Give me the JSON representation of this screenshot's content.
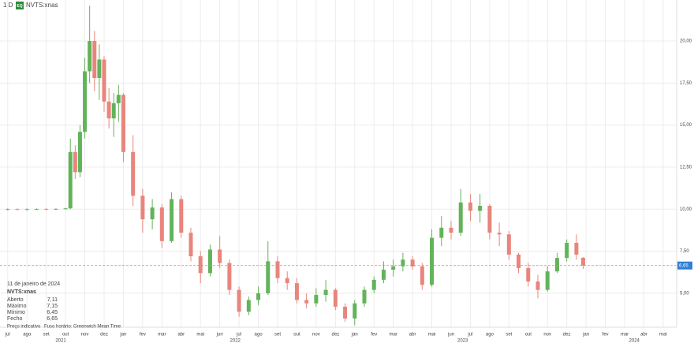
{
  "toolbar": {
    "interval": "1 D",
    "badge": "EQ",
    "symbol": "NVTS:xnas"
  },
  "chart_data": {
    "type": "candlestick",
    "x": [
      0,
      0.5,
      1,
      1.5,
      2,
      2.5,
      3,
      3.25,
      3.5,
      3.75,
      4,
      4.25,
      4.5,
      4.75,
      5,
      5.25,
      5.5,
      5.75,
      6,
      6.5,
      7,
      7.5,
      8,
      8.5,
      9,
      9.5,
      10,
      10.5,
      11,
      11.5,
      12,
      12.5,
      13,
      13.5,
      14,
      14.5,
      15,
      15.5,
      16,
      16.5,
      17,
      17.5,
      18,
      18.5,
      19,
      19.5,
      20,
      20.5,
      21,
      21.5,
      22,
      22.5,
      23,
      23.5,
      24,
      24.5,
      25,
      25.5,
      26,
      26.5,
      27,
      27.5,
      28,
      28.5,
      29,
      29.5,
      29.85
    ],
    "open": [
      10.0,
      10.0,
      9.98,
      10.0,
      10.01,
      10.0,
      10.02,
      10.05,
      13.4,
      12.2,
      14.6,
      18.2,
      20.0,
      17.8,
      18.9,
      16.4,
      15.4,
      16.3,
      16.8,
      13.4,
      10.8,
      9.4,
      10.1,
      8.1,
      10.6,
      8.6,
      7.2,
      6.2,
      7.6,
      6.8,
      5.2,
      3.9,
      4.6,
      5.0,
      6.9,
      5.9,
      5.6,
      4.6,
      4.4,
      4.9,
      5.2,
      4.2,
      3.5,
      4.4,
      5.2,
      5.8,
      6.4,
      6.6,
      7.0,
      6.6,
      5.5,
      8.3,
      8.9,
      8.6,
      10.4,
      9.9,
      10.2,
      8.6,
      8.5,
      7.3,
      6.5,
      5.7,
      5.2,
      6.3,
      7.1,
      8.0,
      7.11
    ],
    "high": [
      10.05,
      10.05,
      10.05,
      10.05,
      10.06,
      10.05,
      10.08,
      14.2,
      13.8,
      15.0,
      19.0,
      22.1,
      20.6,
      19.8,
      19.1,
      17.2,
      16.9,
      17.4,
      16.9,
      14.4,
      11.2,
      10.6,
      10.3,
      11.0,
      10.8,
      8.9,
      7.5,
      7.9,
      8.4,
      7.0,
      5.4,
      4.8,
      5.4,
      8.1,
      7.2,
      6.3,
      5.9,
      5.0,
      5.3,
      5.8,
      5.3,
      4.4,
      4.6,
      5.4,
      6.0,
      6.9,
      7.0,
      7.4,
      7.2,
      6.8,
      8.8,
      9.6,
      9.3,
      11.2,
      10.9,
      10.9,
      10.3,
      9.2,
      8.7,
      7.4,
      6.8,
      6.1,
      6.6,
      7.4,
      8.2,
      8.5,
      7.15
    ],
    "low": [
      9.95,
      9.95,
      9.95,
      9.96,
      9.97,
      9.97,
      9.98,
      10.0,
      11.8,
      11.9,
      14.2,
      17.5,
      17.0,
      16.5,
      15.8,
      14.8,
      14.3,
      15.2,
      12.8,
      10.2,
      8.6,
      8.8,
      7.7,
      8.0,
      8.3,
      6.9,
      5.6,
      6.0,
      6.5,
      4.9,
      3.6,
      3.7,
      4.3,
      4.9,
      5.6,
      5.2,
      4.4,
      4.1,
      4.2,
      4.5,
      4.0,
      3.3,
      3.1,
      4.2,
      5.0,
      5.6,
      6.0,
      6.3,
      6.4,
      5.2,
      5.4,
      7.8,
      8.2,
      8.4,
      9.3,
      9.2,
      8.2,
      7.8,
      7.0,
      6.2,
      5.4,
      4.7,
      5.1,
      6.2,
      6.9,
      7.0,
      6.45
    ],
    "close": [
      10.0,
      9.98,
      10.0,
      10.01,
      10.0,
      10.02,
      10.05,
      13.4,
      12.2,
      14.6,
      18.2,
      20.0,
      17.8,
      18.9,
      16.4,
      15.4,
      16.3,
      16.8,
      13.4,
      10.8,
      9.4,
      10.1,
      8.1,
      10.6,
      8.6,
      7.2,
      6.2,
      7.6,
      6.8,
      5.2,
      3.9,
      4.6,
      5.0,
      6.9,
      5.9,
      5.6,
      4.6,
      4.4,
      4.9,
      5.2,
      4.2,
      3.5,
      4.4,
      5.2,
      5.8,
      6.4,
      6.6,
      7.0,
      6.6,
      5.5,
      8.3,
      8.9,
      8.6,
      10.4,
      9.9,
      10.2,
      8.6,
      8.5,
      7.3,
      6.5,
      5.7,
      5.2,
      6.3,
      7.1,
      8.0,
      7.3,
      6.65
    ],
    "up_color": "#62b35a",
    "down_color": "#e8857c",
    "xlim": [
      -0.4,
      34.7
    ],
    "ylim": [
      2.98,
      22.44
    ],
    "grid": true,
    "yticks": [
      {
        "value": 5,
        "label": "5,00"
      },
      {
        "value": 7.5,
        "label": "7,50"
      },
      {
        "value": 10,
        "label": "10,00"
      },
      {
        "value": 12.5,
        "label": "12,50"
      },
      {
        "value": 15,
        "label": "15,00"
      },
      {
        "value": 17.5,
        "label": "17,50"
      },
      {
        "value": 20,
        "label": "20,00"
      }
    ],
    "xticks": [
      {
        "value": 0,
        "label": "jul"
      },
      {
        "value": 1,
        "label": "ago"
      },
      {
        "value": 2,
        "label": "set"
      },
      {
        "value": 3,
        "label": "out"
      },
      {
        "value": 4,
        "label": "nov"
      },
      {
        "value": 5,
        "label": "dez"
      },
      {
        "value": 6,
        "label": "jan"
      },
      {
        "value": 7,
        "label": "fev"
      },
      {
        "value": 8,
        "label": "mar"
      },
      {
        "value": 9,
        "label": "abr"
      },
      {
        "value": 10,
        "label": "mai"
      },
      {
        "value": 11,
        "label": "jun"
      },
      {
        "value": 12,
        "label": "jul"
      },
      {
        "value": 13,
        "label": "ago"
      },
      {
        "value": 14,
        "label": "set"
      },
      {
        "value": 15,
        "label": "out"
      },
      {
        "value": 16,
        "label": "nov"
      },
      {
        "value": 17,
        "label": "dez"
      },
      {
        "value": 18,
        "label": "jan"
      },
      {
        "value": 19,
        "label": "fev"
      },
      {
        "value": 20,
        "label": "mar"
      },
      {
        "value": 21,
        "label": "abr"
      },
      {
        "value": 22,
        "label": "mai"
      },
      {
        "value": 23,
        "label": "jun"
      },
      {
        "value": 24,
        "label": "jul"
      },
      {
        "value": 25,
        "label": "ago"
      },
      {
        "value": 26,
        "label": "set"
      },
      {
        "value": 27,
        "label": "out"
      },
      {
        "value": 28,
        "label": "nov"
      },
      {
        "value": 29,
        "label": "dez"
      },
      {
        "value": 30,
        "label": "jan"
      },
      {
        "value": 31,
        "label": "fev"
      },
      {
        "value": 32,
        "label": "mar"
      },
      {
        "value": 33,
        "label": "abr"
      },
      {
        "value": 34,
        "label": "mai"
      }
    ],
    "year_labels": [
      {
        "value": 2.75,
        "label": "2021"
      },
      {
        "value": 11.8,
        "label": "2022"
      },
      {
        "value": 23.6,
        "label": "2023"
      },
      {
        "value": 32.5,
        "label": "2024"
      }
    ],
    "last_price": {
      "value": 6.65,
      "label": "6,65"
    }
  },
  "info_panel": {
    "date": "11 de janeiro de 2024",
    "symbol": "NVTS:xnas",
    "rows": [
      [
        "Aberto",
        "7,11"
      ],
      [
        "Máximo",
        "7,15"
      ],
      [
        "Mínimo",
        "6,45"
      ],
      [
        "Fecho",
        "6,65"
      ]
    ],
    "footer": [
      "Preço indicativo",
      "Fuso horário: Greenwich Mean Time"
    ]
  }
}
